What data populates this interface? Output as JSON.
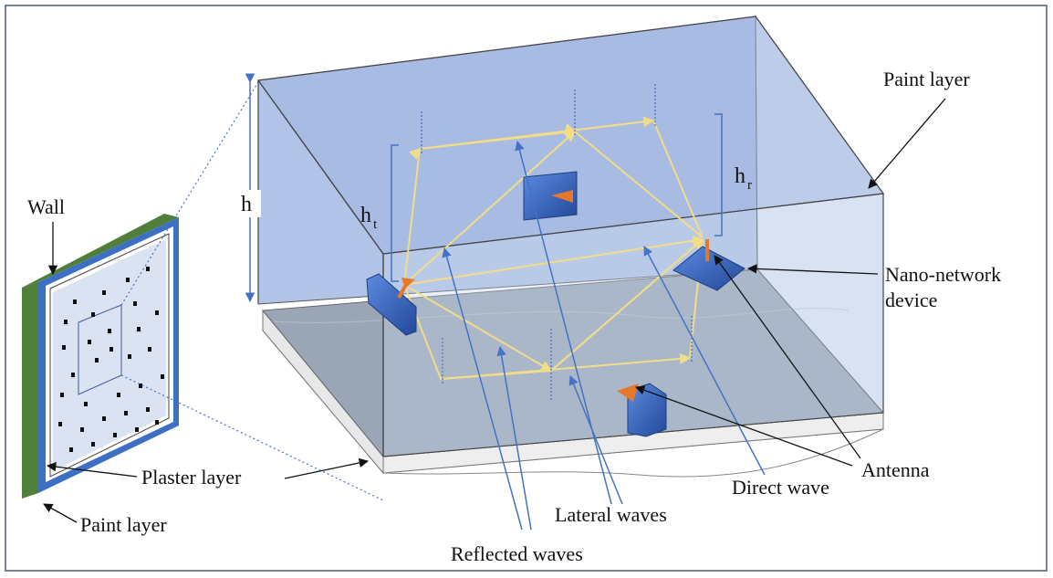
{
  "labels": {
    "wall": "Wall",
    "plaster_layer": "Plaster layer",
    "paint_layer_left": "Paint layer",
    "paint_layer_top": "Paint layer",
    "nano_device_line1": "Nano-network",
    "nano_device_line2": "device",
    "antenna": "Antenna",
    "direct_wave": "Direct wave",
    "lateral_waves": "Lateral waves",
    "reflected_waves": "Reflected waves",
    "h": "h",
    "ht_base": "h",
    "ht_sub": "t",
    "hr_base": "h",
    "hr_sub": "r"
  },
  "colors": {
    "frame": "#4a5a6e",
    "box_top": "#a9bce3",
    "box_front": "#c9d7ef",
    "paint_plane": "#9aa6b6",
    "plaster_plane": "#dcdde0",
    "wall_green": "#4f7f3a",
    "wall_blue": "#3d6fc4",
    "wall_face": "#dbe3f2",
    "wave_yellow": "#f2dc8a",
    "pointer_blue": "#4472c4",
    "device_blue": "#3a67b8",
    "antenna_orange": "#e6782e"
  }
}
